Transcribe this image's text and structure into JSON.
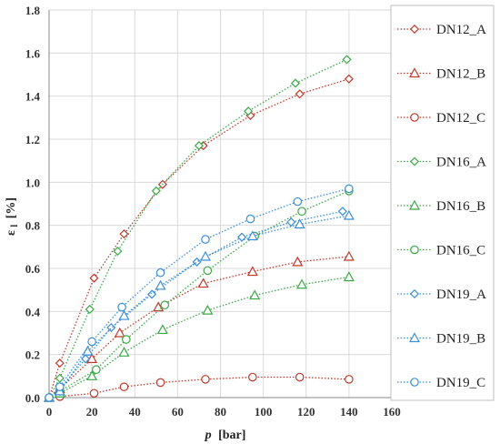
{
  "chart_data": {
    "type": "scatter",
    "xlabel": {
      "main": "p",
      "unit": "[bar]"
    },
    "ylabel": {
      "main": "ε",
      "sub": "l",
      "unit": "[%]"
    },
    "xlim": [
      0,
      160
    ],
    "ylim": [
      0,
      1.8
    ],
    "xticks": [
      "0",
      "20",
      "40",
      "60",
      "80",
      "100",
      "120",
      "140",
      "160"
    ],
    "yticks": [
      "0.0",
      "0.2",
      "0.4",
      "0.6",
      "0.8",
      "1.0",
      "1.2",
      "1.4",
      "1.6",
      "1.8"
    ],
    "grid": true,
    "legend_position": "right",
    "series": [
      {
        "name": "DN12_A",
        "color": "#c0392b",
        "marker": "diamond",
        "x": [
          0,
          5,
          21,
          35,
          53,
          72,
          94,
          117,
          140
        ],
        "y": [
          0,
          0.16,
          0.555,
          0.76,
          0.99,
          1.17,
          1.31,
          1.41,
          1.48
        ]
      },
      {
        "name": "DN12_B",
        "color": "#c0392b",
        "marker": "triangle",
        "x": [
          0,
          5,
          20,
          33,
          51,
          72,
          95,
          116,
          140
        ],
        "y": [
          0,
          0.04,
          0.18,
          0.3,
          0.42,
          0.53,
          0.585,
          0.63,
          0.655
        ]
      },
      {
        "name": "DN12_C",
        "color": "#c0392b",
        "marker": "circle",
        "x": [
          0,
          5,
          21,
          35,
          52,
          73,
          95,
          117,
          140
        ],
        "y": [
          0,
          0.005,
          0.02,
          0.05,
          0.07,
          0.085,
          0.095,
          0.095,
          0.085
        ]
      },
      {
        "name": "DN16_A",
        "color": "#3aa845",
        "marker": "diamond",
        "x": [
          0,
          5,
          19,
          32,
          50,
          70,
          93,
          115,
          139
        ],
        "y": [
          0,
          0.09,
          0.41,
          0.68,
          0.96,
          1.17,
          1.33,
          1.46,
          1.57
        ]
      },
      {
        "name": "DN16_B",
        "color": "#3aa845",
        "marker": "triangle",
        "x": [
          0,
          5,
          20,
          35,
          53,
          74,
          96,
          118,
          140
        ],
        "y": [
          0,
          0.02,
          0.1,
          0.21,
          0.315,
          0.405,
          0.475,
          0.525,
          0.56
        ]
      },
      {
        "name": "DN16_C",
        "color": "#3aa845",
        "marker": "circle",
        "x": [
          0,
          5,
          22,
          36,
          54,
          74,
          96,
          118,
          140
        ],
        "y": [
          0,
          0.03,
          0.13,
          0.27,
          0.43,
          0.59,
          0.75,
          0.865,
          0.96
        ]
      },
      {
        "name": "DN19_A",
        "color": "#3a8fd8",
        "marker": "diamond",
        "x": [
          0,
          5,
          17,
          29,
          48,
          69,
          90,
          113,
          137
        ],
        "y": [
          0,
          0.04,
          0.18,
          0.325,
          0.48,
          0.63,
          0.745,
          0.815,
          0.865
        ]
      },
      {
        "name": "DN19_B",
        "color": "#3a8fd8",
        "marker": "triangle",
        "x": [
          0,
          5,
          18,
          35,
          52,
          73,
          95,
          117,
          140
        ],
        "y": [
          0,
          0.03,
          0.215,
          0.38,
          0.52,
          0.655,
          0.75,
          0.805,
          0.845
        ]
      },
      {
        "name": "DN19_C",
        "color": "#3a8fd8",
        "marker": "circle",
        "x": [
          0,
          5,
          20,
          34,
          52,
          73,
          94,
          116,
          140
        ],
        "y": [
          0,
          0.05,
          0.26,
          0.42,
          0.58,
          0.735,
          0.83,
          0.91,
          0.97
        ]
      }
    ]
  }
}
